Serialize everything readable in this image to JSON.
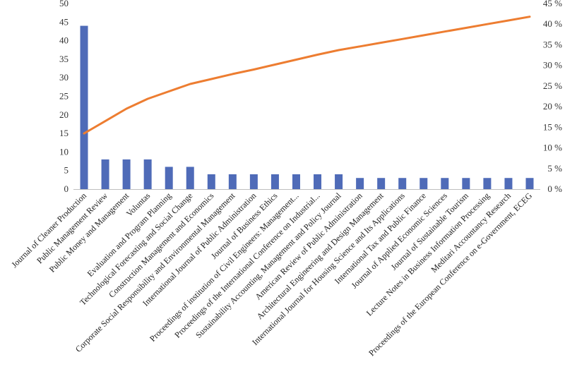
{
  "chart_data": {
    "type": "bar",
    "title": "",
    "xlabel": "",
    "ylabel": "",
    "y2label": "",
    "ylim": [
      0,
      50
    ],
    "y2lim": [
      0,
      45
    ],
    "y_ticks": [
      "0",
      "5",
      "10",
      "15",
      "20",
      "25",
      "30",
      "35",
      "40",
      "45",
      "50"
    ],
    "y2_ticks": [
      "0 %",
      "5 %",
      "10 %",
      "15 %",
      "20 %",
      "25 %",
      "30 %",
      "35 %",
      "40 %",
      "45 %"
    ],
    "grid": false,
    "legend": "none",
    "categories": [
      "Journal of Cleaner Production",
      "Public Management Review",
      "Public Money and Management",
      "Voluntas",
      "Evaluation and Program Planning",
      "Technological Forecasting and Social Change",
      "Construction Management and Economics",
      "Corporate Social Responsibility and Environmental Management",
      "International Journal of Public Administration",
      "Journal of Business Ethics",
      "Proceedings of institution of Civil Engineers: Management...",
      "Proceedings of the International Conference on Industrial...",
      "Sustainability Accounting, Management and Policy Journal",
      "American Review of Public Administration",
      "Architectural Engineering and Design Management",
      "International Journal for Housing Science and Its Applications",
      "International Tax and Public Finance",
      "Journal of Applied Economic Sciences",
      "Journal of Sustainable Tourism",
      "Lecture Notes in Business Information Processing",
      "Meditari Accountancy Research",
      "Proceedings of the European Conference on e-Government, ECEG"
    ],
    "series": [
      {
        "type": "bar",
        "axis": "left",
        "color": "#4f6bb8",
        "values": [
          44,
          8,
          8,
          8,
          6,
          6,
          4,
          4,
          4,
          4,
          4,
          4,
          4,
          3,
          3,
          3,
          3,
          3,
          3,
          3,
          3,
          3
        ]
      },
      {
        "type": "line",
        "axis": "right",
        "color": "#ed7d31",
        "values": [
          13.5,
          16.5,
          19.5,
          21.9,
          23.7,
          25.5,
          26.7,
          27.9,
          29.0,
          30.2,
          31.4,
          32.6,
          33.7,
          34.6,
          35.5,
          36.4,
          37.3,
          38.2,
          39.1,
          40.0,
          40.9,
          41.8
        ]
      }
    ]
  }
}
